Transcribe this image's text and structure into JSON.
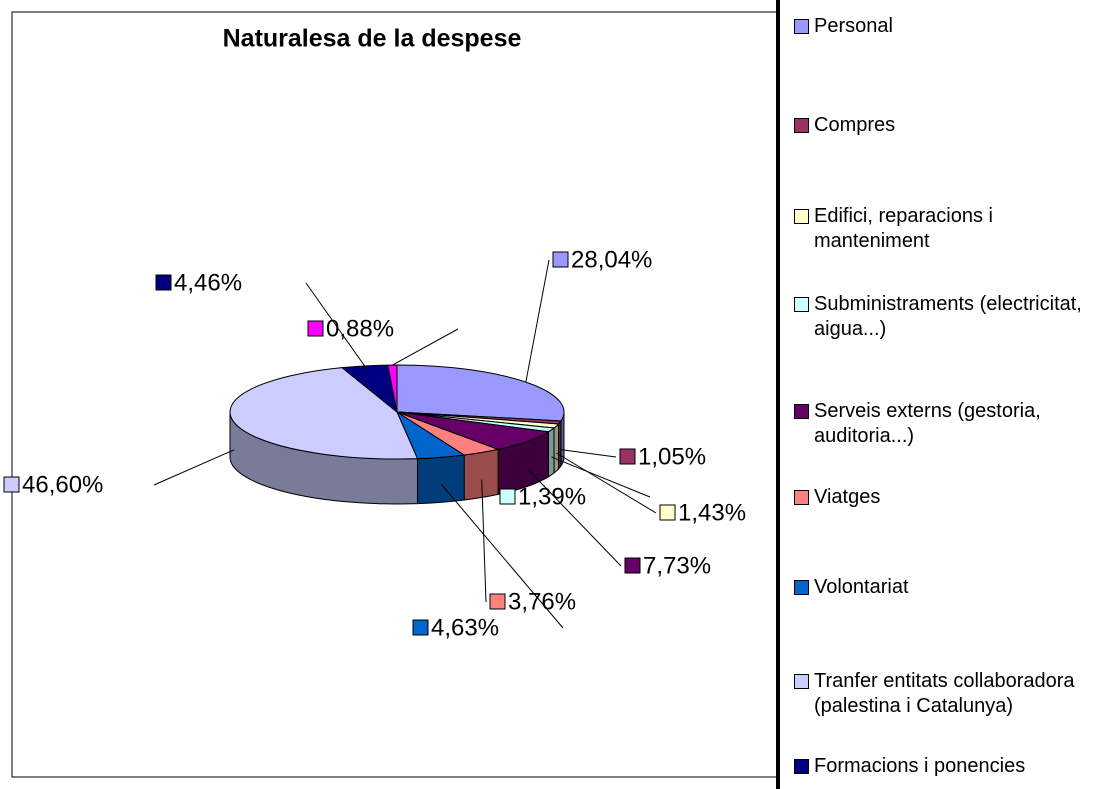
{
  "chart_data": {
    "type": "pie3d",
    "title": "Naturalesa de la despese",
    "categories": [
      "Personal",
      "Compres",
      "Edifici, reparacions i manteniment",
      "Subministraments (electricitat, aigua...)",
      "Serveis externs (gestoria, auditoria...)",
      "Viatges",
      "Volontariat",
      "Tranfer entitats collaboradora (palestina i Catalunya)",
      "Formacions i ponencies",
      null
    ],
    "values": [
      28.04,
      1.05,
      1.43,
      1.39,
      7.73,
      3.76,
      4.63,
      46.6,
      4.46,
      0.88
    ],
    "value_labels": [
      "28,04%",
      "1,05%",
      "1,43%",
      "1,39%",
      "7,73%",
      "3,76%",
      "4,63%",
      "46,60%",
      "4,46%",
      "0,88%"
    ],
    "colors": [
      "#9999ff",
      "#993366",
      "#ffffcc",
      "#ccffff",
      "#660066",
      "#ff8080",
      "#0066cc",
      "#ccccff",
      "#000080",
      "#ff00ff"
    ],
    "legend": "right"
  }
}
